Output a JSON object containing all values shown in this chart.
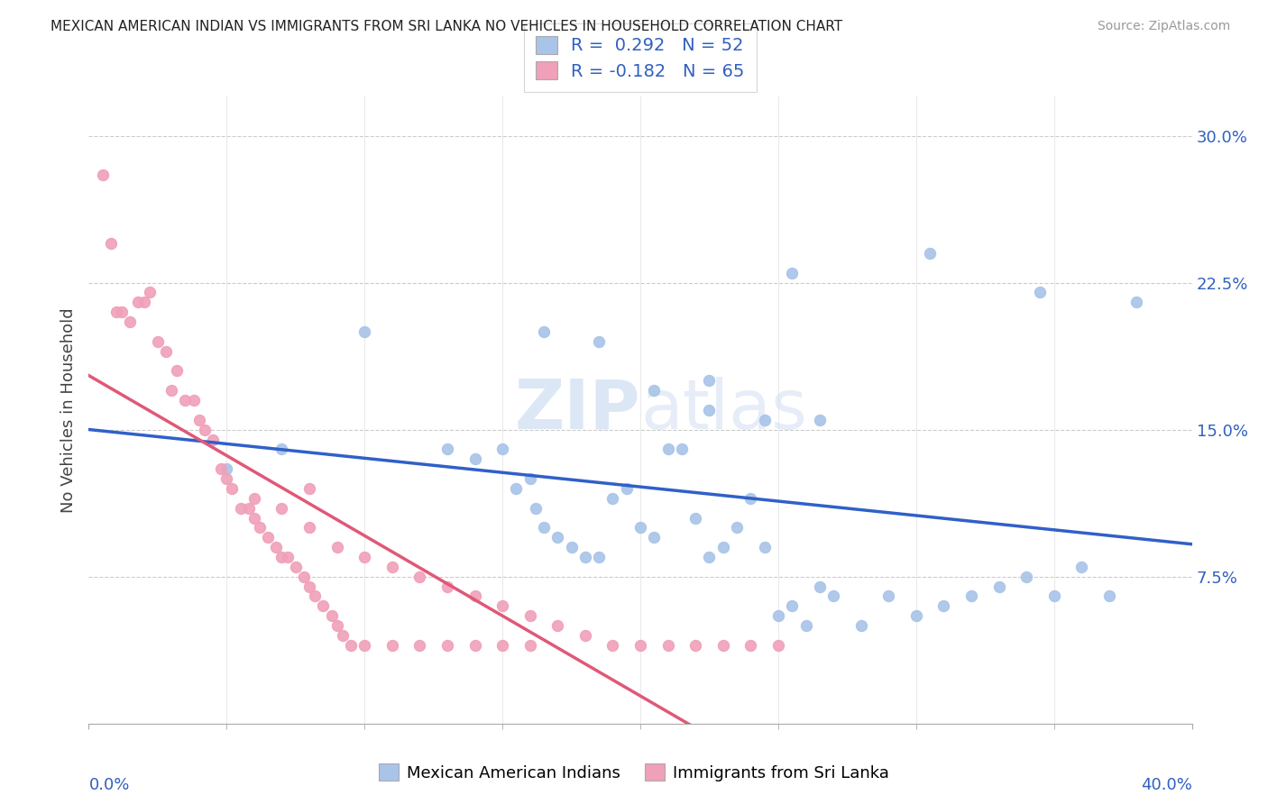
{
  "title": "MEXICAN AMERICAN INDIAN VS IMMIGRANTS FROM SRI LANKA NO VEHICLES IN HOUSEHOLD CORRELATION CHART",
  "source": "Source: ZipAtlas.com",
  "ylabel": "No Vehicles in Household",
  "yticks": [
    0.0,
    0.075,
    0.15,
    0.225,
    0.3
  ],
  "ytick_labels": [
    "",
    "7.5%",
    "15.0%",
    "22.5%",
    "30.0%"
  ],
  "xlim": [
    0.0,
    0.4
  ],
  "ylim": [
    0.0,
    0.32
  ],
  "legend_r1": "R =  0.292",
  "legend_n1": "N = 52",
  "legend_r2": "R = -0.182",
  "legend_n2": "N = 65",
  "blue_color": "#a8c4e8",
  "pink_color": "#f0a0b8",
  "blue_line_color": "#3060c8",
  "pink_line_color": "#e05878",
  "watermark_zip": "ZIP",
  "watermark_atlas": "atlas",
  "series1_label": "Mexican American Indians",
  "series2_label": "Immigrants from Sri Lanka",
  "blue_x": [
    0.05,
    0.07,
    0.1,
    0.13,
    0.14,
    0.15,
    0.155,
    0.16,
    0.162,
    0.165,
    0.17,
    0.175,
    0.18,
    0.185,
    0.19,
    0.195,
    0.2,
    0.205,
    0.21,
    0.215,
    0.22,
    0.225,
    0.23,
    0.235,
    0.24,
    0.245,
    0.25,
    0.255,
    0.26,
    0.265,
    0.27,
    0.28,
    0.29,
    0.3,
    0.31,
    0.32,
    0.33,
    0.34,
    0.35,
    0.36,
    0.37,
    0.38,
    0.255,
    0.265,
    0.305,
    0.345,
    0.205,
    0.225,
    0.245,
    0.165,
    0.185,
    0.225
  ],
  "blue_y": [
    0.13,
    0.14,
    0.2,
    0.14,
    0.135,
    0.14,
    0.12,
    0.125,
    0.11,
    0.1,
    0.095,
    0.09,
    0.085,
    0.085,
    0.115,
    0.12,
    0.1,
    0.095,
    0.14,
    0.14,
    0.105,
    0.085,
    0.09,
    0.1,
    0.115,
    0.09,
    0.055,
    0.06,
    0.05,
    0.07,
    0.065,
    0.05,
    0.065,
    0.055,
    0.06,
    0.065,
    0.07,
    0.075,
    0.065,
    0.08,
    0.065,
    0.215,
    0.23,
    0.155,
    0.24,
    0.22,
    0.17,
    0.16,
    0.155,
    0.2,
    0.195,
    0.175
  ],
  "pink_x": [
    0.005,
    0.008,
    0.01,
    0.012,
    0.015,
    0.018,
    0.02,
    0.022,
    0.025,
    0.028,
    0.03,
    0.032,
    0.035,
    0.038,
    0.04,
    0.042,
    0.045,
    0.048,
    0.05,
    0.052,
    0.055,
    0.058,
    0.06,
    0.062,
    0.065,
    0.068,
    0.07,
    0.072,
    0.075,
    0.078,
    0.08,
    0.082,
    0.085,
    0.088,
    0.09,
    0.092,
    0.095,
    0.1,
    0.11,
    0.12,
    0.13,
    0.14,
    0.15,
    0.16,
    0.08,
    0.09,
    0.1,
    0.11,
    0.12,
    0.13,
    0.14,
    0.15,
    0.16,
    0.17,
    0.18,
    0.19,
    0.2,
    0.21,
    0.22,
    0.23,
    0.24,
    0.25,
    0.06,
    0.07,
    0.08
  ],
  "pink_y": [
    0.28,
    0.245,
    0.21,
    0.21,
    0.205,
    0.215,
    0.215,
    0.22,
    0.195,
    0.19,
    0.17,
    0.18,
    0.165,
    0.165,
    0.155,
    0.15,
    0.145,
    0.13,
    0.125,
    0.12,
    0.11,
    0.11,
    0.105,
    0.1,
    0.095,
    0.09,
    0.085,
    0.085,
    0.08,
    0.075,
    0.07,
    0.065,
    0.06,
    0.055,
    0.05,
    0.045,
    0.04,
    0.04,
    0.04,
    0.04,
    0.04,
    0.04,
    0.04,
    0.04,
    0.1,
    0.09,
    0.085,
    0.08,
    0.075,
    0.07,
    0.065,
    0.06,
    0.055,
    0.05,
    0.045,
    0.04,
    0.04,
    0.04,
    0.04,
    0.04,
    0.04,
    0.04,
    0.115,
    0.11,
    0.12
  ]
}
